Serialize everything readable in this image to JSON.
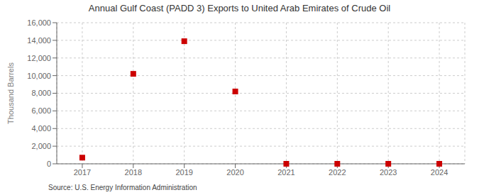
{
  "chart_data": {
    "type": "scatter",
    "title": "Annual Gulf Coast (PADD 3) Exports to United Arab Emirates of Crude Oil",
    "ylabel": "Thousand Barrels",
    "annotation": "Source: U.S. Energy Information Administration",
    "x": [
      2017,
      2018,
      2019,
      2020,
      2021,
      2022,
      2023,
      2024
    ],
    "values": [
      700,
      10200,
      13900,
      8200,
      0,
      0,
      0,
      0
    ],
    "color": "#cc0000",
    "marker": "square",
    "xlim": [
      2016.5,
      2024.5
    ],
    "ylim": [
      0,
      16000
    ],
    "xticks": [
      2017,
      2018,
      2019,
      2020,
      2021,
      2022,
      2023,
      2024
    ],
    "yticks": [
      0,
      {
        "value": 2000,
        "label": "2,000"
      },
      {
        "value": 4000,
        "label": "4,000"
      },
      {
        "value": 6000,
        "label": "6,000"
      },
      {
        "value": 8000,
        "label": "8,000"
      },
      {
        "value": 10000,
        "label": "10,000"
      },
      {
        "value": 12000,
        "label": "12,000"
      },
      {
        "value": 14000,
        "label": "14,000"
      },
      {
        "value": 16000,
        "label": "16,000"
      }
    ],
    "grid": true
  }
}
